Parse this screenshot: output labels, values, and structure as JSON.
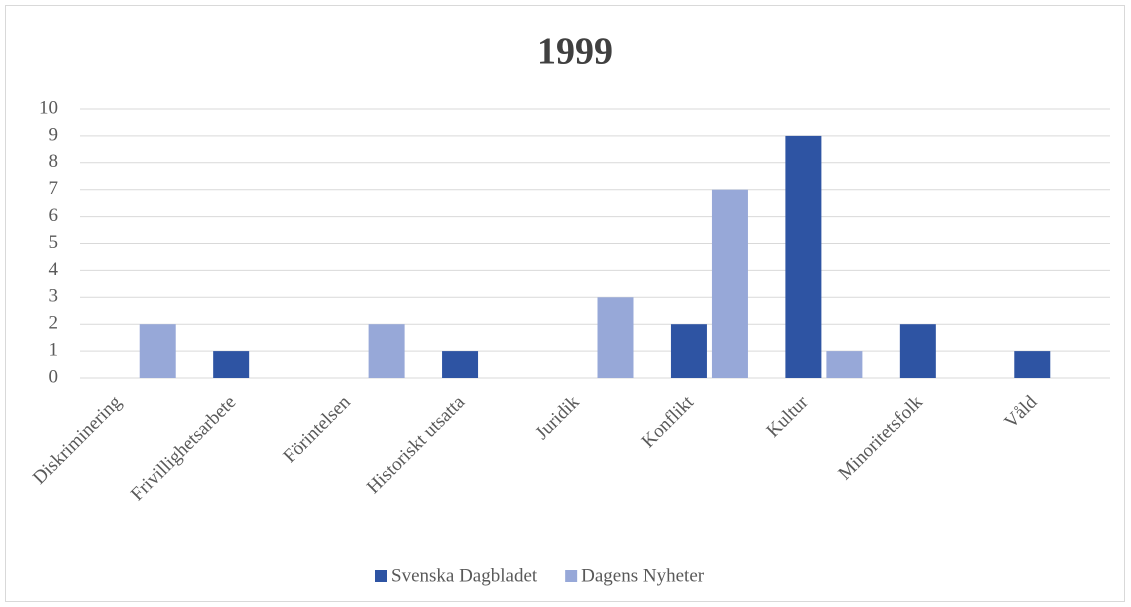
{
  "chart_data": {
    "type": "bar",
    "title": "1999",
    "categories": [
      "Diskriminering",
      "Frivillighetsarbete",
      "Förintelsen",
      "Historiskt utsatta",
      "Juridik",
      "Konflikt",
      "Kultur",
      "Minoritetsfolk",
      "Våld"
    ],
    "series": [
      {
        "name": "Svenska Dagbladet",
        "color": "#2e54a3",
        "values": [
          0,
          1,
          0,
          1,
          0,
          2,
          9,
          2,
          1
        ]
      },
      {
        "name": "Dagens Nyheter",
        "color": "#97a8d8",
        "values": [
          2,
          0,
          2,
          0,
          3,
          7,
          1,
          0,
          0
        ]
      }
    ],
    "ylim": [
      0,
      10
    ],
    "yticks": [
      0,
      1,
      2,
      3,
      4,
      5,
      6,
      7,
      8,
      9,
      10
    ],
    "grid": true,
    "legend": "bottom"
  }
}
